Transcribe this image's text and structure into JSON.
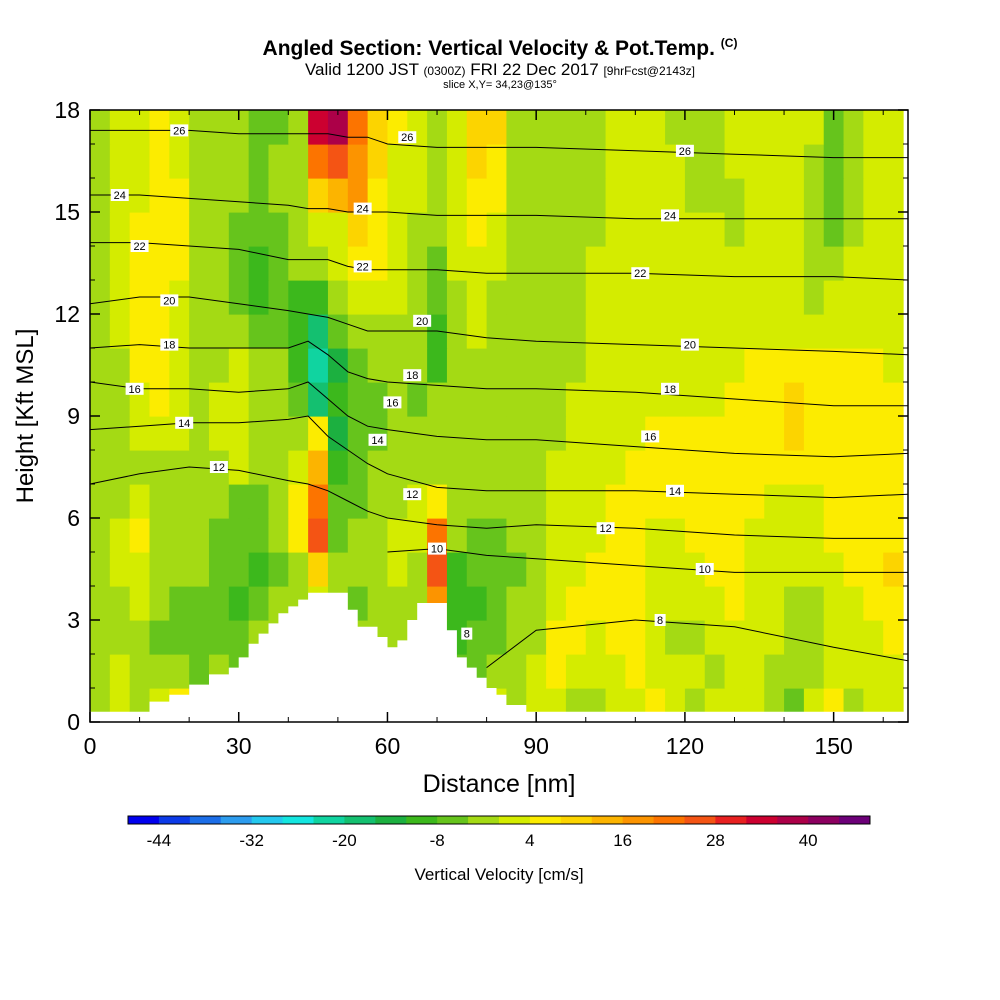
{
  "title": {
    "main": "Angled Section: Vertical Velocity & Pot.Temp.",
    "main_suffix": "(C)",
    "valid_pre": "Valid 1200 JST",
    "valid_utc": "(0300Z)",
    "valid_date": "FRI 22 Dec 2017",
    "valid_fcst": "[9hrFcst@2143z]",
    "slice": "slice X,Y= 34,23@135°"
  },
  "chart_data": {
    "type": "heatmap",
    "xlabel": "Distance [nm]",
    "ylabel": "Height [Kft MSL]",
    "xlim": [
      0,
      165
    ],
    "ylim": [
      0,
      18
    ],
    "x_ticks": [
      "0",
      "30",
      "60",
      "90",
      "120",
      "150"
    ],
    "x_tick_values": [
      0,
      30,
      60,
      90,
      120,
      150
    ],
    "y_ticks": [
      "0",
      "3",
      "6",
      "9",
      "12",
      "15",
      "18"
    ],
    "y_tick_values": [
      0,
      3,
      6,
      9,
      12,
      15,
      18
    ],
    "colorbar": {
      "label": "Vertical Velocity [cm/s]",
      "tick_labels": [
        "-44",
        "-32",
        "-20",
        "-8",
        "4",
        "16",
        "28",
        "40"
      ],
      "tick_values": [
        -44,
        -32,
        -20,
        -8,
        4,
        16,
        28,
        40
      ],
      "levels": [
        -48,
        -44,
        -40,
        -36,
        -32,
        -28,
        -24,
        -20,
        -16,
        -12,
        -8,
        -4,
        0,
        4,
        8,
        12,
        16,
        20,
        24,
        28,
        32,
        36,
        40,
        44,
        48
      ],
      "colors": [
        "#0000ee",
        "#0c3ae8",
        "#1c6ee8",
        "#2c9cee",
        "#24c8ee",
        "#14e6e0",
        "#10d4a0",
        "#14c070",
        "#1cb040",
        "#3cb81c",
        "#66c41c",
        "#a4da14",
        "#d4ec00",
        "#fcec00",
        "#fcd400",
        "#fcb400",
        "#fc9400",
        "#fc7400",
        "#f45414",
        "#e82020",
        "#cc0030",
        "#ac0048",
        "#8c0060",
        "#6c0078"
      ]
    },
    "shading_cells_cm_s": {
      "x_centers_nm": [
        2,
        6,
        10,
        14,
        18,
        22,
        26,
        30,
        34,
        38,
        42,
        46,
        50,
        54,
        58,
        62,
        66,
        70,
        74,
        78,
        82,
        86,
        90,
        94,
        98,
        102,
        106,
        110,
        114,
        118,
        122,
        126,
        130,
        134,
        138,
        142,
        146,
        150,
        154,
        158,
        162
      ],
      "y_centers_kft": [
        0.5,
        1.5,
        2.5,
        3.5,
        4.5,
        5.5,
        6.5,
        7.5,
        8.5,
        9.5,
        10.5,
        11.5,
        12.5,
        13.5,
        14.5,
        15.5,
        16.5,
        17.5
      ],
      "rows": [
        [
          -2,
          2,
          -2,
          0,
          6,
          -4,
          2,
          -6,
          2,
          0,
          0,
          2,
          0,
          -2,
          2,
          0,
          -2,
          2,
          -6,
          -2,
          0,
          -4,
          2,
          2,
          -2,
          -4,
          0,
          2,
          4,
          0,
          -2,
          0,
          2,
          0,
          -2,
          -6,
          0,
          4,
          -2,
          0,
          2
        ],
        [
          -2,
          2,
          -2,
          -4,
          -4,
          -6,
          -4,
          -6,
          0,
          -2,
          0,
          0,
          0,
          -2,
          0,
          0,
          -2,
          2,
          -8,
          -6,
          -2,
          -4,
          0,
          4,
          2,
          0,
          2,
          4,
          2,
          0,
          0,
          -2,
          2,
          0,
          -2,
          -4,
          -2,
          2,
          0,
          0,
          2
        ],
        [
          -4,
          -2,
          -4,
          -6,
          -6,
          -8,
          -8,
          -8,
          -4,
          -2,
          0,
          0,
          0,
          -4,
          -2,
          -4,
          0,
          -2,
          -10,
          -8,
          -6,
          -4,
          -2,
          4,
          6,
          2,
          4,
          4,
          2,
          -2,
          -2,
          0,
          2,
          2,
          0,
          -2,
          -2,
          0,
          0,
          2,
          4
        ],
        [
          -4,
          -2,
          0,
          -4,
          -6,
          -6,
          -8,
          -10,
          -6,
          -4,
          -2,
          0,
          -2,
          -6,
          -4,
          -2,
          -2,
          18,
          -12,
          -10,
          -8,
          -4,
          -2,
          2,
          4,
          4,
          6,
          4,
          2,
          0,
          0,
          2,
          4,
          2,
          0,
          -2,
          -2,
          0,
          2,
          4,
          6
        ],
        [
          -2,
          0,
          2,
          -2,
          -4,
          -4,
          -6,
          -8,
          -10,
          -6,
          -2,
          10,
          -4,
          -4,
          -4,
          0,
          -2,
          24,
          -10,
          -8,
          -6,
          -6,
          -2,
          0,
          2,
          4,
          4,
          4,
          2,
          2,
          2,
          4,
          4,
          2,
          2,
          0,
          0,
          2,
          4,
          6,
          8
        ],
        [
          -2,
          0,
          6,
          -2,
          -2,
          -2,
          -6,
          -8,
          -8,
          -2,
          6,
          26,
          -6,
          -4,
          -2,
          0,
          0,
          20,
          -4,
          -6,
          -6,
          -4,
          -2,
          0,
          2,
          2,
          4,
          4,
          2,
          2,
          4,
          4,
          4,
          2,
          2,
          2,
          2,
          4,
          4,
          4,
          4
        ],
        [
          -2,
          -2,
          0,
          -2,
          -4,
          -2,
          -4,
          -6,
          -8,
          -4,
          4,
          22,
          -8,
          -6,
          -4,
          -2,
          0,
          4,
          -2,
          -4,
          -4,
          -4,
          -2,
          0,
          2,
          2,
          4,
          4,
          4,
          4,
          4,
          4,
          4,
          4,
          2,
          2,
          2,
          4,
          4,
          4,
          4
        ],
        [
          -2,
          -2,
          -2,
          -2,
          -4,
          -4,
          -2,
          0,
          -2,
          -4,
          0,
          14,
          -10,
          -6,
          -4,
          -2,
          -2,
          -4,
          -4,
          -4,
          -2,
          -4,
          -2,
          0,
          0,
          2,
          2,
          4,
          4,
          4,
          4,
          4,
          4,
          4,
          4,
          4,
          4,
          4,
          4,
          4,
          4
        ],
        [
          -2,
          -2,
          2,
          2,
          0,
          -2,
          0,
          0,
          -2,
          -2,
          -2,
          6,
          -16,
          -8,
          -6,
          -4,
          -4,
          -4,
          -4,
          -4,
          -2,
          -4,
          -4,
          -2,
          0,
          0,
          2,
          2,
          4,
          4,
          4,
          4,
          4,
          4,
          4,
          8,
          4,
          4,
          4,
          4,
          4
        ],
        [
          -2,
          -2,
          2,
          4,
          0,
          -2,
          0,
          0,
          -2,
          -2,
          -6,
          -20,
          -12,
          -8,
          -6,
          -4,
          -6,
          -4,
          -4,
          -2,
          -4,
          -4,
          -4,
          -2,
          0,
          0,
          2,
          2,
          2,
          2,
          2,
          2,
          4,
          4,
          4,
          10,
          4,
          4,
          4,
          4,
          4
        ],
        [
          -2,
          -2,
          4,
          6,
          0,
          -2,
          -2,
          0,
          -4,
          -4,
          -10,
          -24,
          -14,
          -6,
          -4,
          -4,
          -4,
          -12,
          -4,
          -2,
          -4,
          -4,
          -4,
          -2,
          -2,
          0,
          2,
          2,
          2,
          2,
          2,
          2,
          2,
          4,
          4,
          4,
          4,
          4,
          4,
          4,
          2
        ],
        [
          -2,
          0,
          4,
          6,
          2,
          -2,
          -4,
          -4,
          -8,
          -6,
          -12,
          -18,
          -8,
          -2,
          -2,
          -2,
          -4,
          -10,
          -2,
          0,
          -2,
          -4,
          -4,
          -2,
          -2,
          0,
          0,
          2,
          2,
          2,
          2,
          2,
          2,
          2,
          2,
          2,
          2,
          2,
          2,
          2,
          2
        ],
        [
          -2,
          0,
          4,
          6,
          2,
          -2,
          -4,
          -6,
          -10,
          -8,
          -12,
          -10,
          -4,
          2,
          2,
          0,
          -2,
          -8,
          -2,
          0,
          -2,
          -2,
          -2,
          -2,
          -2,
          0,
          0,
          0,
          2,
          2,
          0,
          0,
          0,
          2,
          2,
          2,
          -2,
          0,
          0,
          0,
          2
        ],
        [
          -2,
          0,
          4,
          6,
          4,
          -2,
          -4,
          -6,
          -10,
          -6,
          -4,
          -4,
          0,
          6,
          4,
          0,
          -2,
          -6,
          0,
          2,
          0,
          -2,
          -2,
          -2,
          -2,
          0,
          0,
          0,
          2,
          0,
          0,
          0,
          0,
          0,
          0,
          0,
          -4,
          -4,
          0,
          0,
          2
        ],
        [
          -2,
          0,
          4,
          6,
          4,
          -2,
          -4,
          -6,
          -8,
          -6,
          -2,
          2,
          2,
          10,
          4,
          0,
          -2,
          -4,
          0,
          4,
          2,
          -2,
          -2,
          -2,
          -2,
          -2,
          0,
          0,
          0,
          0,
          0,
          0,
          -2,
          0,
          0,
          0,
          -4,
          -6,
          -2,
          0,
          2
        ],
        [
          -2,
          0,
          2,
          4,
          4,
          -2,
          -2,
          -4,
          -6,
          -4,
          -2,
          10,
          14,
          16,
          6,
          2,
          0,
          -2,
          0,
          6,
          4,
          -2,
          -2,
          -2,
          -2,
          -2,
          0,
          0,
          0,
          0,
          -2,
          -2,
          -2,
          0,
          0,
          0,
          -2,
          -8,
          -4,
          0,
          2
        ],
        [
          -2,
          0,
          2,
          4,
          2,
          -2,
          -2,
          -2,
          -6,
          -4,
          -4,
          22,
          24,
          18,
          8,
          2,
          0,
          -2,
          0,
          8,
          6,
          -2,
          -2,
          -2,
          -2,
          -2,
          0,
          0,
          0,
          0,
          -2,
          -2,
          0,
          0,
          0,
          0,
          -2,
          -8,
          -2,
          0,
          2
        ],
        [
          -2,
          0,
          2,
          4,
          2,
          -2,
          -2,
          -2,
          -8,
          -6,
          -4,
          34,
          36,
          20,
          10,
          4,
          2,
          -2,
          2,
          8,
          8,
          -2,
          -2,
          -2,
          -2,
          -2,
          0,
          0,
          0,
          -2,
          -2,
          -2,
          0,
          0,
          0,
          0,
          0,
          -6,
          -2,
          0,
          2
        ]
      ]
    },
    "potential_temperature_contours_C": [
      8,
      10,
      12,
      14,
      16,
      18,
      20,
      22,
      24,
      26
    ],
    "potential_temperature_contours_kft": {
      "x_nm": [
        0,
        10,
        20,
        30,
        40,
        44,
        48,
        52,
        56,
        60,
        70,
        80,
        90,
        110,
        130,
        150,
        165
      ],
      "levels": {
        "8": [
          null,
          null,
          null,
          null,
          null,
          null,
          null,
          null,
          null,
          null,
          null,
          1.6,
          2.7,
          3.0,
          2.8,
          2.2,
          1.8
        ],
        "10": [
          null,
          null,
          null,
          null,
          null,
          null,
          null,
          null,
          null,
          5.0,
          5.1,
          4.9,
          4.8,
          4.6,
          4.4,
          4.4,
          4.4
        ],
        "12": [
          7.0,
          7.3,
          7.5,
          7.4,
          7.1,
          7.0,
          6.8,
          6.5,
          6.2,
          6.0,
          5.8,
          5.7,
          5.8,
          5.7,
          5.5,
          5.4,
          5.4
        ],
        "14": [
          8.6,
          8.7,
          8.8,
          8.8,
          8.9,
          9.0,
          8.4,
          8.0,
          7.6,
          7.3,
          6.9,
          6.8,
          6.8,
          6.8,
          6.7,
          6.6,
          6.7
        ],
        "16": [
          10.0,
          9.8,
          9.8,
          9.7,
          9.8,
          10.0,
          9.5,
          9.0,
          8.7,
          8.6,
          8.4,
          8.3,
          8.3,
          8.1,
          7.9,
          7.8,
          7.9
        ],
        "18": [
          11.0,
          11.1,
          11.0,
          11.0,
          11.0,
          11.2,
          10.8,
          10.3,
          10.1,
          10.0,
          9.9,
          9.8,
          9.8,
          9.7,
          9.5,
          9.3,
          9.3
        ],
        "20": [
          12.3,
          12.5,
          12.5,
          12.3,
          12.1,
          12.0,
          11.9,
          11.7,
          11.5,
          11.5,
          11.5,
          11.3,
          11.2,
          11.1,
          11.0,
          10.9,
          10.8
        ],
        "22": [
          14.1,
          14.1,
          14.0,
          13.9,
          13.6,
          13.6,
          13.6,
          13.4,
          13.3,
          13.3,
          13.3,
          13.2,
          13.2,
          13.2,
          13.1,
          13.1,
          13.0
        ],
        "24": [
          15.5,
          15.5,
          15.4,
          15.3,
          15.2,
          15.1,
          15.1,
          15.0,
          15.0,
          15.0,
          14.9,
          14.9,
          14.9,
          14.8,
          14.8,
          14.8,
          14.8
        ],
        "26": [
          17.4,
          17.4,
          17.4,
          17.3,
          17.3,
          17.3,
          17.3,
          17.2,
          17.2,
          17.0,
          16.9,
          16.9,
          16.9,
          16.8,
          16.7,
          16.6,
          16.6
        ]
      },
      "label_positions": [
        {
          "t": "26",
          "x": 18,
          "y": 17.4
        },
        {
          "t": "26",
          "x": 64,
          "y": 17.2
        },
        {
          "t": "26",
          "x": 120,
          "y": 16.8
        },
        {
          "t": "24",
          "x": 6,
          "y": 15.5
        },
        {
          "t": "24",
          "x": 55,
          "y": 15.1
        },
        {
          "t": "24",
          "x": 117,
          "y": 14.9
        },
        {
          "t": "22",
          "x": 10,
          "y": 14.0
        },
        {
          "t": "22",
          "x": 55,
          "y": 13.4
        },
        {
          "t": "22",
          "x": 111,
          "y": 13.2
        },
        {
          "t": "20",
          "x": 16,
          "y": 12.4
        },
        {
          "t": "20",
          "x": 67,
          "y": 11.8
        },
        {
          "t": "20",
          "x": 121,
          "y": 11.1
        },
        {
          "t": "18",
          "x": 16,
          "y": 11.1
        },
        {
          "t": "18",
          "x": 65,
          "y": 10.2
        },
        {
          "t": "18",
          "x": 117,
          "y": 9.8
        },
        {
          "t": "16",
          "x": 9,
          "y": 9.8
        },
        {
          "t": "16",
          "x": 61,
          "y": 9.4
        },
        {
          "t": "16",
          "x": 113,
          "y": 8.4
        },
        {
          "t": "14",
          "x": 19,
          "y": 8.8
        },
        {
          "t": "14",
          "x": 58,
          "y": 8.3
        },
        {
          "t": "14",
          "x": 118,
          "y": 6.8
        },
        {
          "t": "12",
          "x": 26,
          "y": 7.5
        },
        {
          "t": "12",
          "x": 65,
          "y": 6.7
        },
        {
          "t": "12",
          "x": 104,
          "y": 5.7
        },
        {
          "t": "10",
          "x": 70,
          "y": 5.1
        },
        {
          "t": "10",
          "x": 124,
          "y": 4.5
        },
        {
          "t": "8",
          "x": 76,
          "y": 2.6
        },
        {
          "t": "8",
          "x": 115,
          "y": 3.0
        }
      ]
    },
    "terrain_profile_kft": {
      "x_nm": [
        0,
        10,
        12,
        16,
        20,
        24,
        28,
        30,
        32,
        34,
        36,
        38,
        40,
        42,
        44,
        46,
        48,
        50,
        52,
        54,
        56,
        58,
        60,
        62,
        64,
        66,
        68,
        70,
        72,
        74,
        76,
        78,
        80,
        82,
        84,
        86,
        88,
        90,
        165
      ],
      "heights": [
        0.3,
        0.3,
        0.6,
        0.8,
        1.1,
        1.4,
        1.6,
        1.9,
        2.3,
        2.6,
        2.9,
        3.2,
        3.4,
        3.6,
        3.8,
        3.8,
        3.8,
        3.8,
        3.3,
        2.8,
        2.8,
        2.5,
        2.2,
        2.4,
        3.0,
        3.5,
        3.5,
        3.5,
        2.7,
        1.9,
        1.6,
        1.3,
        1.0,
        0.8,
        0.5,
        0.5,
        0.3,
        0.3,
        0.3
      ]
    }
  }
}
